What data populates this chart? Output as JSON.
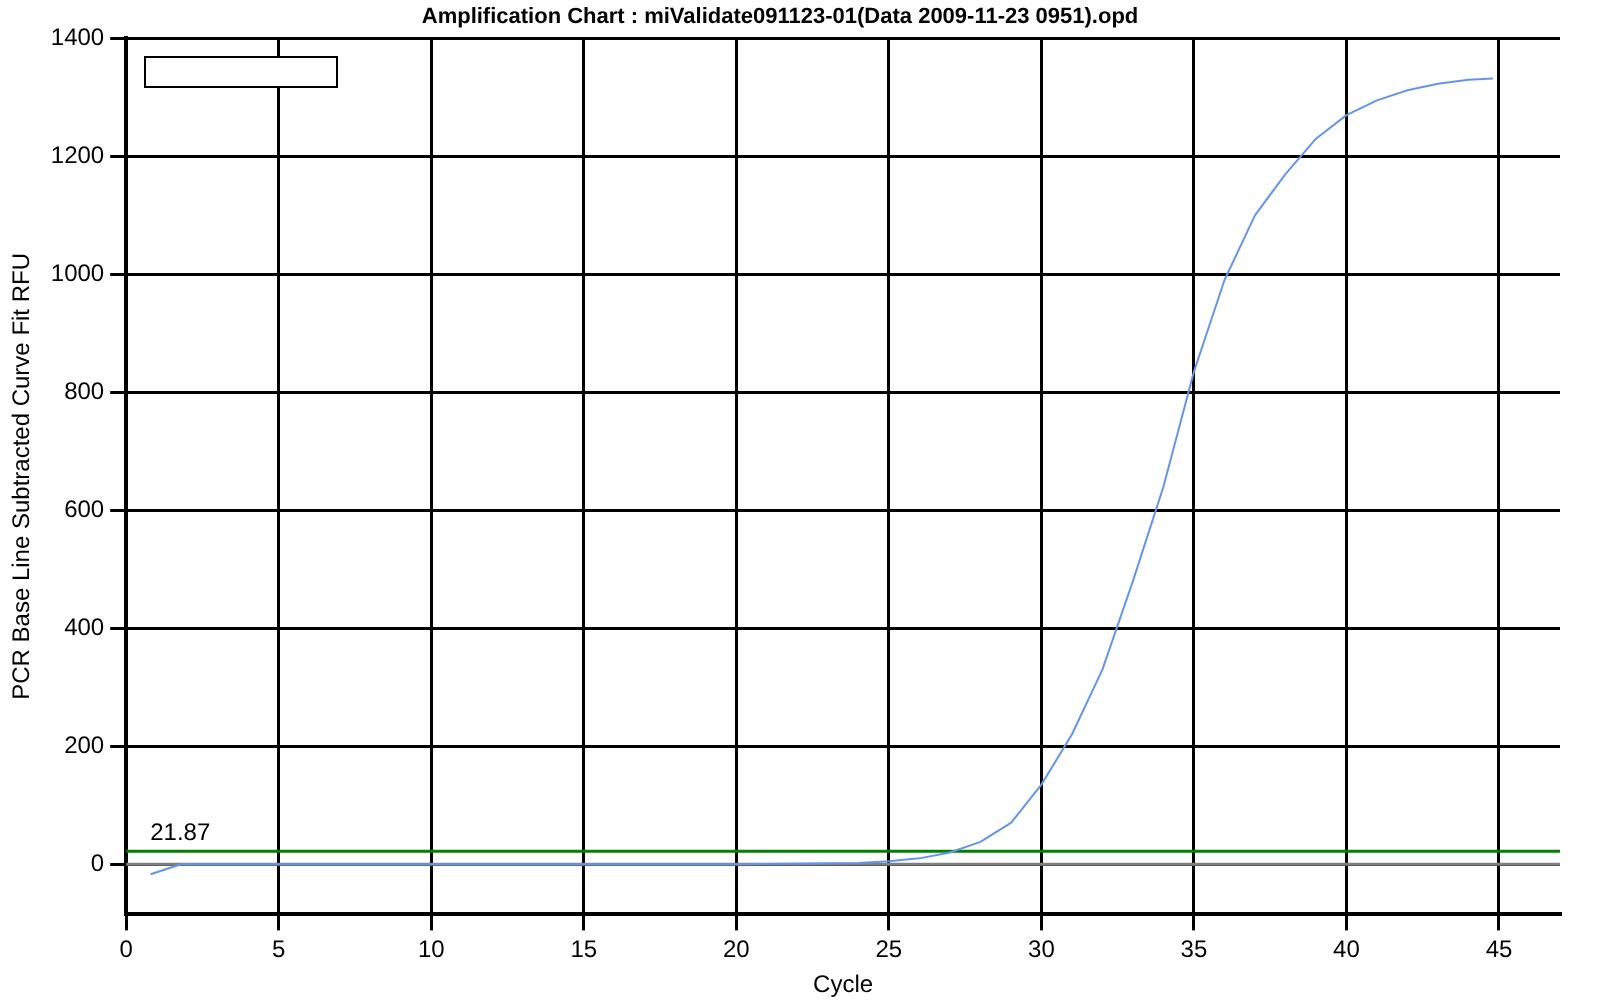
{
  "chart_data": {
    "type": "line",
    "title": "Amplification Chart : miValidate091123-01(Data 2009-11-23 0951).opd",
    "xlabel": "Cycle",
    "ylabel": "PCR Base Line Subtracted Curve Fit RFU",
    "series": [
      {
        "color": "#6495ed",
        "x": [
          0.8,
          1.8,
          5,
          10,
          15,
          20,
          24,
          25,
          26,
          27,
          28,
          29,
          30,
          31,
          32,
          33,
          34,
          35,
          36,
          37,
          38,
          39,
          40,
          41,
          42,
          43,
          44,
          44.8
        ],
        "values": [
          -17,
          0,
          0,
          0,
          0,
          0,
          2,
          5,
          10,
          20,
          38,
          70,
          135,
          220,
          330,
          480,
          640,
          835,
          990,
          1100,
          1170,
          1230,
          1270,
          1295,
          1312,
          1323,
          1330,
          1332
        ]
      }
    ],
    "xlim": [
      0,
      47
    ],
    "xticks": [
      0,
      5,
      10,
      15,
      20,
      25,
      30,
      35,
      40,
      45
    ],
    "ylim": [
      -85,
      1400
    ],
    "yticks": [
      0,
      200,
      400,
      600,
      800,
      1000,
      1200,
      1400
    ],
    "ref_lines": [
      {
        "axis": "y",
        "value": 21.87,
        "label": "21.87",
        "color": "#008000"
      },
      {
        "axis": "y",
        "value": 0,
        "color": "#808080"
      }
    ],
    "grid": true,
    "marker": "none",
    "line_style": "solid"
  }
}
